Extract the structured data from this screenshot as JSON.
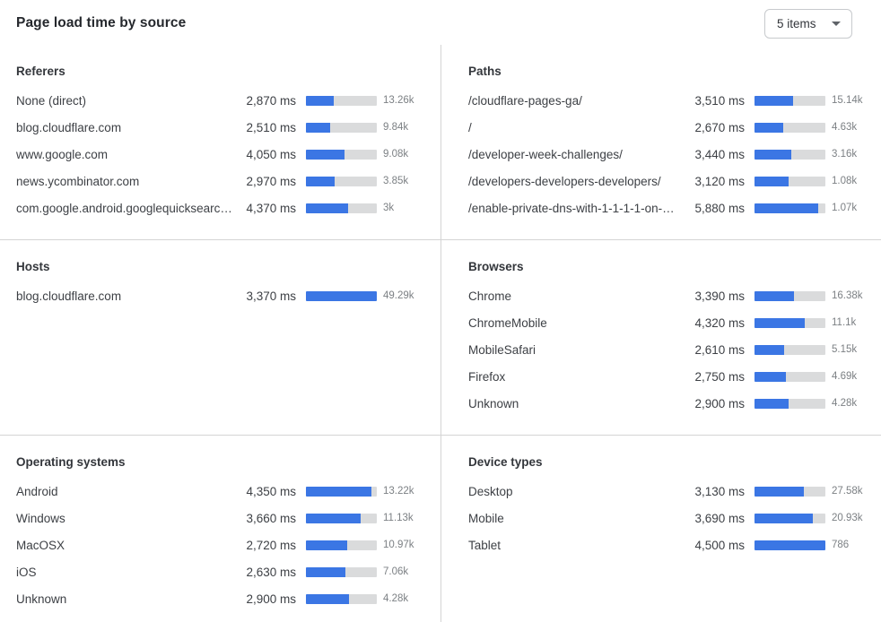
{
  "header": {
    "title": "Page load time by source",
    "items_select_value": "5 items"
  },
  "colors": {
    "bar_fill": "#3B76E4",
    "bar_track": "#DADBDC",
    "divider": "#D4D4D4",
    "count_text": "#7C8084"
  },
  "chart_data": [
    {
      "type": "bar",
      "title": "Referers",
      "unit": "ms",
      "rows": [
        {
          "label": "None (direct)",
          "time_ms": 2870,
          "time_label": "2,870 ms",
          "count_label": "13.26k",
          "bar_pct": 39.5
        },
        {
          "label": "blog.cloudflare.com",
          "time_ms": 2510,
          "time_label": "2,510 ms",
          "count_label": "9.84k",
          "bar_pct": 34
        },
        {
          "label": "www.google.com",
          "time_ms": 4050,
          "time_label": "4,050 ms",
          "count_label": "9.08k",
          "bar_pct": 54.5
        },
        {
          "label": "news.ycombinator.com",
          "time_ms": 2970,
          "time_label": "2,970 ms",
          "count_label": "3.85k",
          "bar_pct": 40
        },
        {
          "label": "com.google.android.googlequicksearc…",
          "time_ms": 4370,
          "time_label": "4,370 ms",
          "count_label": "3k",
          "bar_pct": 59.5
        }
      ]
    },
    {
      "type": "bar",
      "title": "Paths",
      "unit": "ms",
      "rows": [
        {
          "label": "/cloudflare-pages-ga/",
          "time_ms": 3510,
          "time_label": "3,510 ms",
          "count_label": "15.14k",
          "bar_pct": 54
        },
        {
          "label": "/",
          "time_ms": 2670,
          "time_label": "2,670 ms",
          "count_label": "4.63k",
          "bar_pct": 40
        },
        {
          "label": "/developer-week-challenges/",
          "time_ms": 3440,
          "time_label": "3,440 ms",
          "count_label": "3.16k",
          "bar_pct": 52.5
        },
        {
          "label": "/developers-developers-developers/",
          "time_ms": 3120,
          "time_label": "3,120 ms",
          "count_label": "1.08k",
          "bar_pct": 47.5
        },
        {
          "label": "/enable-private-dns-with-1-1-1-1-on-…",
          "time_ms": 5880,
          "time_label": "5,880 ms",
          "count_label": "1.07k",
          "bar_pct": 90.5
        }
      ]
    },
    {
      "type": "bar",
      "title": "Hosts",
      "unit": "ms",
      "rows": [
        {
          "label": "blog.cloudflare.com",
          "time_ms": 3370,
          "time_label": "3,370 ms",
          "count_label": "49.29k",
          "bar_pct": 100
        }
      ]
    },
    {
      "type": "bar",
      "title": "Browsers",
      "unit": "ms",
      "rows": [
        {
          "label": "Chrome",
          "time_ms": 3390,
          "time_label": "3,390 ms",
          "count_label": "16.38k",
          "bar_pct": 55.5
        },
        {
          "label": "ChromeMobile",
          "time_ms": 4320,
          "time_label": "4,320 ms",
          "count_label": "11.1k",
          "bar_pct": 71
        },
        {
          "label": "MobileSafari",
          "time_ms": 2610,
          "time_label": "2,610 ms",
          "count_label": "5.15k",
          "bar_pct": 42
        },
        {
          "label": "Firefox",
          "time_ms": 2750,
          "time_label": "2,750 ms",
          "count_label": "4.69k",
          "bar_pct": 44.5
        },
        {
          "label": "Unknown",
          "time_ms": 2900,
          "time_label": "2,900 ms",
          "count_label": "4.28k",
          "bar_pct": 48
        }
      ]
    },
    {
      "type": "bar",
      "title": "Operating systems",
      "unit": "ms",
      "rows": [
        {
          "label": "Android",
          "time_ms": 4350,
          "time_label": "4,350 ms",
          "count_label": "13.22k",
          "bar_pct": 92.5
        },
        {
          "label": "Windows",
          "time_ms": 3660,
          "time_label": "3,660 ms",
          "count_label": "11.13k",
          "bar_pct": 77.5
        },
        {
          "label": "MacOSX",
          "time_ms": 2720,
          "time_label": "2,720 ms",
          "count_label": "10.97k",
          "bar_pct": 58
        },
        {
          "label": "iOS",
          "time_ms": 2630,
          "time_label": "2,630 ms",
          "count_label": "7.06k",
          "bar_pct": 55.5
        },
        {
          "label": "Unknown",
          "time_ms": 2900,
          "time_label": "2,900 ms",
          "count_label": "4.28k",
          "bar_pct": 61
        }
      ]
    },
    {
      "type": "bar",
      "title": "Device types",
      "unit": "ms",
      "rows": [
        {
          "label": "Desktop",
          "time_ms": 3130,
          "time_label": "3,130 ms",
          "count_label": "27.58k",
          "bar_pct": 70
        },
        {
          "label": "Mobile",
          "time_ms": 3690,
          "time_label": "3,690 ms",
          "count_label": "20.93k",
          "bar_pct": 82.5
        },
        {
          "label": "Tablet",
          "time_ms": 4500,
          "time_label": "4,500 ms",
          "count_label": "786",
          "bar_pct": 100
        }
      ]
    }
  ]
}
